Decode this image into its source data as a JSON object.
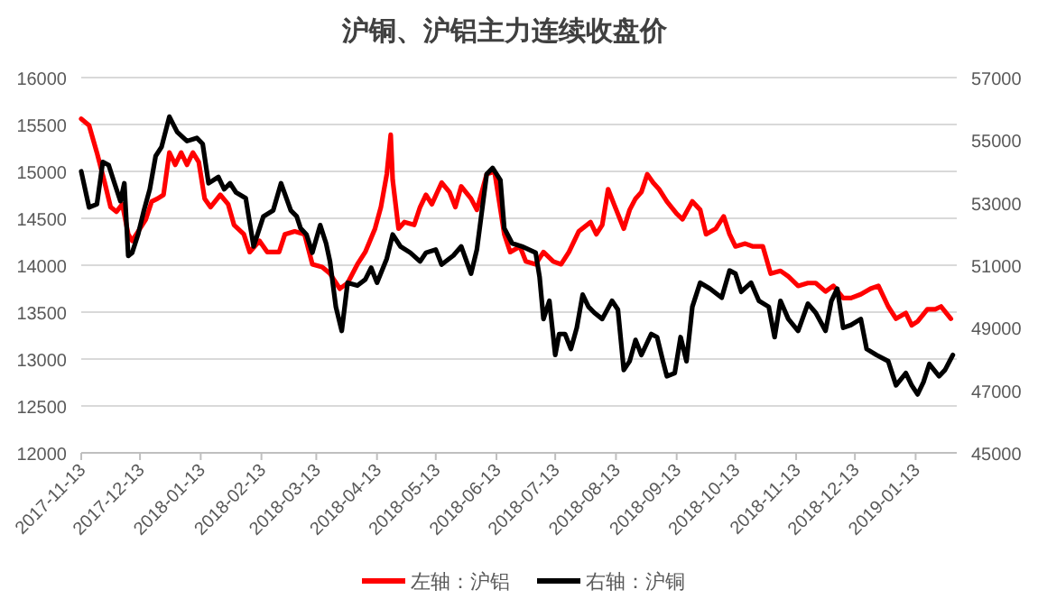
{
  "chart_data": {
    "type": "line",
    "title": "沪铜、沪铝主力连续收盘价",
    "xlim": [
      "2017-11-13",
      "2019-02-03"
    ],
    "xticks": [
      "2017-11-13",
      "2017-12-13",
      "2018-01-13",
      "2018-02-13",
      "2018-03-13",
      "2018-04-13",
      "2018-05-13",
      "2018-06-13",
      "2018-07-13",
      "2018-08-13",
      "2018-09-13",
      "2018-10-13",
      "2018-11-13",
      "2018-12-13",
      "2019-01-13"
    ],
    "ylim": [
      12000,
      16000
    ],
    "yticks": [
      12000,
      12500,
      13000,
      13500,
      14000,
      14500,
      15000,
      15500,
      16000
    ],
    "y2lim": [
      45000,
      57000
    ],
    "y2ticks": [
      45000,
      47000,
      49000,
      51000,
      53000,
      55000,
      57000
    ],
    "grid": "y",
    "legend": "bottom",
    "line_style": "solid",
    "marker": "none",
    "series": [
      {
        "name": "左轴：沪铝",
        "color": "#ff0000",
        "x": [
          "2017-11-13",
          "2017-11-17",
          "2017-11-21",
          "2017-11-25",
          "2017-11-28",
          "2017-12-01",
          "2017-12-04",
          "2017-12-07",
          "2017-12-09",
          "2017-12-13",
          "2017-12-16",
          "2017-12-19",
          "2017-12-22",
          "2017-12-25",
          "2017-12-28",
          "2017-12-31",
          "2018-01-03",
          "2018-01-06",
          "2018-01-09",
          "2018-01-12",
          "2018-01-15",
          "2018-01-18",
          "2018-01-23",
          "2018-01-27",
          "2018-01-30",
          "2018-02-04",
          "2018-02-07",
          "2018-02-12",
          "2018-02-16",
          "2018-02-22",
          "2018-02-25",
          "2018-03-02",
          "2018-03-07",
          "2018-03-11",
          "2018-03-16",
          "2018-03-20",
          "2018-03-25",
          "2018-03-29",
          "2018-04-03",
          "2018-04-07",
          "2018-04-12",
          "2018-04-15",
          "2018-04-18",
          "2018-04-20",
          "2018-04-21",
          "2018-04-24",
          "2018-04-27",
          "2018-05-02",
          "2018-05-05",
          "2018-05-08",
          "2018-05-11",
          "2018-05-16",
          "2018-05-20",
          "2018-05-23",
          "2018-05-26",
          "2018-05-31",
          "2018-06-03",
          "2018-06-08",
          "2018-06-12",
          "2018-06-17",
          "2018-06-20",
          "2018-06-25",
          "2018-06-28",
          "2018-07-03",
          "2018-07-07",
          "2018-07-12",
          "2018-07-16",
          "2018-07-20",
          "2018-07-25",
          "2018-07-31",
          "2018-08-03",
          "2018-08-06",
          "2018-08-09",
          "2018-08-12",
          "2018-08-17",
          "2018-08-20",
          "2018-08-23",
          "2018-08-26",
          "2018-08-29",
          "2018-09-01",
          "2018-09-04",
          "2018-09-08",
          "2018-09-13",
          "2018-09-16",
          "2018-09-21",
          "2018-09-25",
          "2018-09-28",
          "2018-10-03",
          "2018-10-07",
          "2018-10-10",
          "2018-10-13",
          "2018-10-18",
          "2018-10-22",
          "2018-10-27",
          "2018-10-31",
          "2018-11-05",
          "2018-11-09",
          "2018-11-14",
          "2018-11-19",
          "2018-11-23",
          "2018-11-28",
          "2018-12-02",
          "2018-12-07",
          "2018-12-11",
          "2018-12-16",
          "2018-12-21",
          "2018-12-25",
          "2018-12-30",
          "2019-01-03",
          "2019-01-08",
          "2019-01-11",
          "2019-01-14",
          "2019-01-19",
          "2019-01-23",
          "2019-01-26",
          "2019-01-31"
        ],
        "values": [
          15560,
          15490,
          15200,
          14880,
          14620,
          14570,
          14650,
          14330,
          14260,
          14390,
          14490,
          14680,
          14710,
          14750,
          15200,
          15070,
          15200,
          15070,
          15200,
          15100,
          14710,
          14620,
          14750,
          14650,
          14430,
          14330,
          14140,
          14260,
          14140,
          14140,
          14330,
          14360,
          14330,
          14010,
          13980,
          13910,
          13750,
          13810,
          14010,
          14140,
          14390,
          14620,
          14970,
          15390,
          14910,
          14390,
          14460,
          14430,
          14620,
          14750,
          14650,
          14880,
          14780,
          14620,
          14840,
          14710,
          14590,
          14970,
          15000,
          14330,
          14140,
          14200,
          14040,
          14010,
          14140,
          14040,
          14010,
          14140,
          14360,
          14460,
          14330,
          14430,
          14810,
          14650,
          14390,
          14590,
          14710,
          14780,
          14970,
          14880,
          14810,
          14680,
          14550,
          14490,
          14680,
          14590,
          14330,
          14390,
          14520,
          14330,
          14200,
          14230,
          14200,
          14200,
          13910,
          13940,
          13880,
          13780,
          13810,
          13810,
          13720,
          13780,
          13650,
          13650,
          13690,
          13750,
          13780,
          13560,
          13430,
          13490,
          13360,
          13400,
          13530,
          13530,
          13560,
          13430
        ]
      },
      {
        "name": "右轴：沪铜",
        "color": "#000000",
        "axis": "y2",
        "x": [
          "2017-11-13",
          "2017-11-17",
          "2017-11-21",
          "2017-11-24",
          "2017-11-27",
          "2017-11-30",
          "2017-12-03",
          "2017-12-05",
          "2017-12-07",
          "2017-12-09",
          "2017-12-12",
          "2017-12-15",
          "2017-12-18",
          "2017-12-21",
          "2017-12-24",
          "2017-12-28",
          "2018-01-01",
          "2018-01-06",
          "2018-01-11",
          "2018-01-14",
          "2018-01-17",
          "2018-01-22",
          "2018-01-25",
          "2018-01-28",
          "2018-01-31",
          "2018-02-05",
          "2018-02-09",
          "2018-02-14",
          "2018-02-19",
          "2018-02-23",
          "2018-02-28",
          "2018-03-03",
          "2018-03-05",
          "2018-03-08",
          "2018-03-11",
          "2018-03-15",
          "2018-03-18",
          "2018-03-20",
          "2018-03-23",
          "2018-03-26",
          "2018-03-29",
          "2018-04-03",
          "2018-04-07",
          "2018-04-10",
          "2018-04-13",
          "2018-04-18",
          "2018-04-21",
          "2018-04-25",
          "2018-04-30",
          "2018-05-05",
          "2018-05-08",
          "2018-05-13",
          "2018-05-16",
          "2018-05-22",
          "2018-05-26",
          "2018-05-31",
          "2018-06-03",
          "2018-06-08",
          "2018-06-11",
          "2018-06-15",
          "2018-06-17",
          "2018-06-21",
          "2018-06-26",
          "2018-07-03",
          "2018-07-05",
          "2018-07-07",
          "2018-07-10",
          "2018-07-13",
          "2018-07-15",
          "2018-07-18",
          "2018-07-21",
          "2018-07-24",
          "2018-07-27",
          "2018-07-30",
          "2018-08-02",
          "2018-08-06",
          "2018-08-11",
          "2018-08-14",
          "2018-08-17",
          "2018-08-20",
          "2018-08-23",
          "2018-08-26",
          "2018-08-31",
          "2018-09-03",
          "2018-09-06",
          "2018-09-08",
          "2018-09-12",
          "2018-09-15",
          "2018-09-18",
          "2018-09-21",
          "2018-09-25",
          "2018-09-30",
          "2018-10-06",
          "2018-10-10",
          "2018-10-13",
          "2018-10-16",
          "2018-10-21",
          "2018-10-25",
          "2018-10-30",
          "2018-11-02",
          "2018-11-05",
          "2018-11-09",
          "2018-11-14",
          "2018-11-19",
          "2018-11-23",
          "2018-11-28",
          "2018-12-01",
          "2018-12-04",
          "2018-12-07",
          "2018-12-11",
          "2018-12-16",
          "2018-12-19",
          "2018-12-24",
          "2018-12-30",
          "2019-01-03",
          "2019-01-08",
          "2019-01-11",
          "2019-01-14",
          "2019-01-17",
          "2019-01-20",
          "2019-01-25",
          "2019-01-28",
          "2019-02-01"
        ],
        "values": [
          54000,
          52850,
          52950,
          54300,
          54200,
          53620,
          53050,
          53620,
          51300,
          51400,
          51980,
          52750,
          53430,
          54490,
          54780,
          55750,
          55260,
          54970,
          55070,
          54880,
          53620,
          53820,
          53430,
          53620,
          53330,
          53140,
          51600,
          52560,
          52750,
          53620,
          52750,
          52560,
          52180,
          51980,
          51400,
          52280,
          51700,
          51120,
          49670,
          48900,
          50440,
          50350,
          50540,
          50920,
          50440,
          51210,
          51980,
          51600,
          51400,
          51120,
          51400,
          51500,
          51020,
          51310,
          51600,
          50730,
          51500,
          53910,
          54110,
          53720,
          52180,
          51700,
          51600,
          51400,
          50630,
          49280,
          49860,
          48130,
          48800,
          48800,
          48320,
          49000,
          50060,
          49670,
          49480,
          49280,
          49860,
          49580,
          47650,
          47930,
          48610,
          48130,
          48800,
          48700,
          47930,
          47450,
          47550,
          48700,
          47930,
          49670,
          50440,
          50250,
          49960,
          50830,
          50730,
          50150,
          50440,
          49860,
          49670,
          48700,
          49860,
          49280,
          48900,
          49770,
          49480,
          48900,
          49860,
          50250,
          49000,
          49090,
          49280,
          48320,
          48130,
          47930,
          47160,
          47550,
          47160,
          46870,
          47260,
          47840,
          47450,
          47650,
          48130
        ]
      }
    ]
  }
}
